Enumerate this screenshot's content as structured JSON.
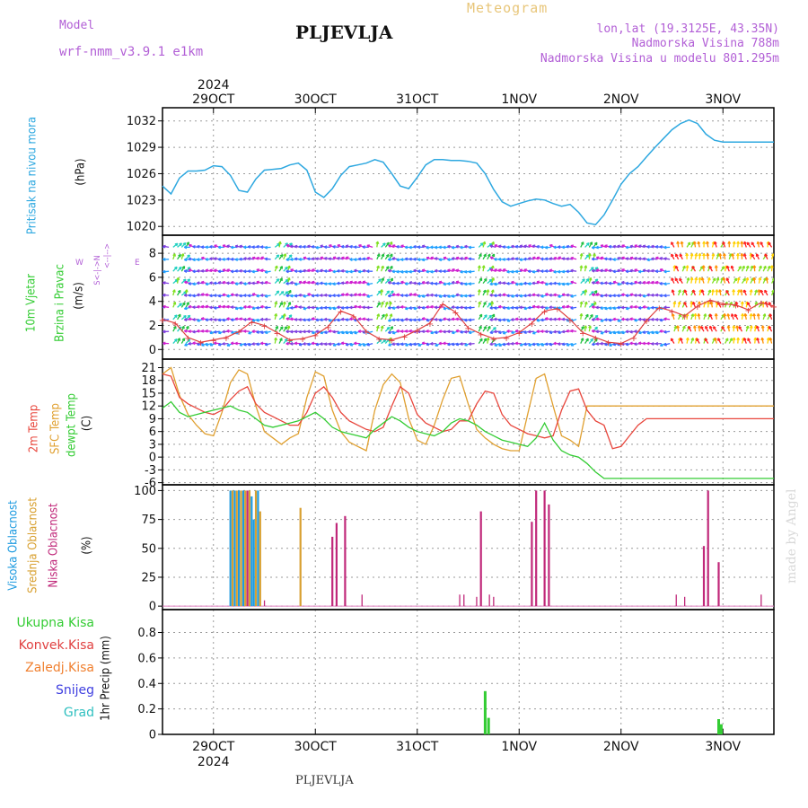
{
  "header": {
    "model_label": "Model",
    "model_name": "wrf-nmm_v3.9.1  e1km",
    "station": "PLJEVLJA",
    "product": "Meteogram",
    "coords": "lon,lat (19.3125E, 43.35N)",
    "elevation": "Nadmorska Visina 788m",
    "model_elevation": "Nadmorska Visina u modelu 801.295m",
    "credit": "made by Angel",
    "footer_station": "PLJEVLJA"
  },
  "time_axis": {
    "top_year": "2024",
    "bottom_year": "2024",
    "day_labels": [
      "29OCT",
      "30OCT",
      "31OCT",
      "1NOV",
      "2NOV",
      "3NOV"
    ]
  },
  "colors": {
    "pressure": "#2ea8e0",
    "temp2m": "#e8463c",
    "sfc_temp": "#e0a030",
    "dewpt": "#33cc33",
    "high_cloud": "#1e9be0",
    "mid_cloud": "#d8a030",
    "low_cloud": "#c0287a",
    "precip_total": "#33cc33",
    "conv_precip": "#e04040",
    "frozen_precip": "#f08030",
    "snow": "#4040e0",
    "hail": "#30c0c0",
    "wind_speed": "#e04040",
    "label_purple": "#b25fd6"
  },
  "panel_labels": {
    "pressure": {
      "title": "Pritisak na nivou mora",
      "unit": "(hPa)"
    },
    "wind": {
      "title1": "10m Vjetar",
      "title2": "Brzina i Pravac",
      "unit": "(m/s)",
      "compass_w": "W",
      "compass_e": "E",
      "compass_top": "<--|-->",
      "compass_axis": "S<-|->N"
    },
    "temp": {
      "t2m": "2m Temp",
      "sfc": "SFC Temp",
      "dew": "dewpt Temp",
      "unit": "(C)"
    },
    "cloud": {
      "high": "Visoka Oblacnost",
      "mid": "Srednja Oblacnost",
      "low": "Niska Oblacnost",
      "unit": "(%)"
    },
    "precip": {
      "axis": "1hr Precip (mm)",
      "legend": [
        "Ukupna Kisa",
        "Konvek.Kisa",
        "Zaledj.Kisa",
        "Snijeg",
        "Grad"
      ]
    }
  },
  "chart_data": [
    {
      "type": "line",
      "name": "pressure",
      "x_unit": "hours since start",
      "ylim": [
        1019,
        1033.5
      ],
      "yticks": [
        1020,
        1023,
        1026,
        1029,
        1032
      ],
      "x": [
        0,
        2,
        4,
        6,
        8,
        10,
        12,
        14,
        16,
        18,
        20,
        22,
        24,
        26,
        28,
        30,
        32,
        34,
        36,
        38,
        40,
        42,
        44,
        46,
        48,
        50,
        52,
        54,
        56,
        58,
        60,
        62,
        64,
        66,
        68,
        70,
        72,
        74,
        76,
        78,
        80,
        82,
        84,
        86,
        88,
        90,
        92,
        94,
        96,
        98,
        100,
        102,
        104,
        106,
        108,
        110,
        112,
        114,
        116,
        118,
        120,
        122,
        124,
        126,
        128,
        130,
        132,
        134,
        136,
        138,
        140,
        142,
        144
      ],
      "values": [
        1024.6,
        1023.7,
        1025.5,
        1026.3,
        1026.3,
        1026.4,
        1026.9,
        1026.8,
        1025.8,
        1024.1,
        1023.9,
        1025.4,
        1026.4,
        1026.5,
        1026.6,
        1027.0,
        1027.2,
        1026.4,
        1023.9,
        1023.3,
        1024.3,
        1025.8,
        1026.8,
        1027.0,
        1027.2,
        1027.6,
        1027.3,
        1026.0,
        1024.6,
        1024.3,
        1025.6,
        1027.0,
        1027.6,
        1027.6,
        1027.5,
        1027.5,
        1027.4,
        1027.2,
        1026.0,
        1024.2,
        1022.8,
        1022.3,
        1022.6,
        1022.9,
        1023.1,
        1023.0,
        1022.6,
        1022.3,
        1022.5,
        1021.6,
        1020.4,
        1020.2,
        1021.3,
        1023.0,
        1024.8,
        1026.0,
        1026.8,
        1027.9,
        1029.0,
        1030.0,
        1031.0,
        1031.7,
        1032.1,
        1031.7,
        1030.5,
        1029.8,
        1029.6,
        1029.6,
        1029.6,
        1029.6,
        1029.6,
        1029.6,
        1029.6
      ]
    },
    {
      "type": "line",
      "name": "wind",
      "ylim": [
        -0.8,
        9.5
      ],
      "yticks": [
        0,
        2,
        4,
        6,
        8
      ],
      "x": [
        0,
        3,
        6,
        9,
        12,
        15,
        18,
        21,
        24,
        27,
        30,
        33,
        36,
        39,
        42,
        45,
        48,
        51,
        54,
        57,
        60,
        63,
        66,
        69,
        72,
        75,
        78,
        81,
        84,
        87,
        90,
        93,
        96,
        99,
        102,
        105,
        108,
        111,
        114,
        117,
        120,
        123,
        126,
        129,
        132,
        135,
        138,
        141,
        144
      ],
      "series": [
        {
          "name": "speed",
          "values": [
            2.5,
            2.2,
            1.0,
            0.6,
            0.8,
            1.0,
            1.5,
            2.3,
            2.0,
            1.4,
            0.8,
            0.9,
            1.2,
            1.9,
            3.2,
            2.8,
            1.5,
            0.9,
            0.8,
            1.1,
            1.6,
            2.2,
            3.8,
            3.1,
            1.8,
            1.3,
            0.9,
            1.0,
            1.4,
            2.2,
            3.2,
            3.4,
            2.5,
            1.4,
            1.0,
            0.6,
            0.5,
            1.0,
            2.4,
            3.5,
            3.2,
            2.8,
            3.6,
            4.1,
            3.8,
            3.7,
            3.3,
            3.9,
            3.6
          ]
        }
      ],
      "arrow_rows": [
        0.5,
        1.5,
        2.5,
        3.5,
        4.5,
        5.5,
        6.5,
        7.5,
        8.5
      ]
    },
    {
      "type": "line",
      "name": "temperature",
      "ylim": [
        -6.5,
        23
      ],
      "yticks": [
        -6,
        -3,
        0,
        3,
        6,
        9,
        12,
        15,
        18,
        21
      ],
      "x": [
        0,
        2,
        4,
        6,
        8,
        10,
        12,
        14,
        16,
        18,
        20,
        22,
        24,
        26,
        28,
        30,
        32,
        34,
        36,
        38,
        40,
        42,
        44,
        46,
        48,
        50,
        52,
        54,
        56,
        58,
        60,
        62,
        64,
        66,
        68,
        70,
        72,
        74,
        76,
        78,
        80,
        82,
        84,
        86,
        88,
        90,
        92,
        94,
        96,
        98,
        100,
        102,
        104,
        106,
        108,
        110,
        112,
        114,
        116,
        118,
        120,
        122,
        124,
        126,
        128,
        130,
        132,
        134,
        136,
        138,
        140,
        142,
        144
      ],
      "series": [
        {
          "name": "2m Temp",
          "values": [
            19.5,
            19.0,
            14.0,
            12.5,
            11.5,
            10.5,
            10.0,
            11.0,
            13.5,
            15.5,
            16.5,
            12.5,
            10.5,
            9.5,
            8.5,
            7.5,
            7.5,
            10.5,
            15.0,
            16.5,
            14.0,
            10.5,
            8.5,
            7.5,
            6.5,
            6.0,
            7.0,
            12.0,
            16.5,
            15.0,
            10.0,
            8.0,
            7.0,
            6.0,
            6.5,
            8.5,
            8.5,
            12.5,
            15.5,
            15.0,
            10.0,
            7.5,
            6.5,
            5.5,
            5.0,
            4.5,
            5.0,
            11.0,
            15.5,
            16.0,
            11.0,
            8.5,
            7.5,
            2.0,
            2.5,
            5.0,
            7.5,
            9.0,
            9.0,
            9.0,
            9.0,
            9.0,
            9.0,
            9.0,
            9.0,
            9.0,
            9.0,
            9.0,
            9.0,
            9.0,
            9.0,
            9.0,
            9.0
          ]
        },
        {
          "name": "SFC Temp",
          "values": [
            19.5,
            21.0,
            14.5,
            10.0,
            7.5,
            5.5,
            5.0,
            10.5,
            17.5,
            20.5,
            19.5,
            12.0,
            6.0,
            4.5,
            3.0,
            4.5,
            5.5,
            14.0,
            20.0,
            19.0,
            11.0,
            6.0,
            3.5,
            2.5,
            1.5,
            11.0,
            17.0,
            19.5,
            17.5,
            9.0,
            4.0,
            3.0,
            7.5,
            13.5,
            18.5,
            19.0,
            12.5,
            6.5,
            4.5,
            3.0,
            2.0,
            1.5,
            1.5,
            10.0,
            18.5,
            19.5,
            12.0,
            5.0,
            4.0,
            2.5,
            12.0,
            12.0,
            12.0,
            12.0,
            12.0,
            12.0,
            12.0,
            12.0,
            12.0,
            12.0,
            12.0,
            12.0,
            12.0,
            12.0,
            12.0,
            12.0,
            12.0,
            12.0,
            12.0,
            12.0,
            12.0,
            12.0,
            12.0
          ]
        },
        {
          "name": "dewpt Temp",
          "values": [
            11.5,
            13.0,
            10.5,
            9.5,
            10.0,
            10.5,
            11.0,
            11.5,
            12.0,
            11.0,
            10.5,
            9.0,
            7.5,
            7.0,
            7.5,
            8.0,
            8.5,
            9.5,
            10.5,
            9.0,
            7.0,
            6.0,
            5.5,
            5.0,
            4.5,
            6.5,
            8.0,
            9.5,
            8.5,
            7.0,
            6.0,
            5.5,
            5.0,
            6.0,
            8.0,
            9.0,
            8.5,
            7.5,
            6.0,
            5.0,
            4.0,
            3.5,
            3.0,
            2.5,
            4.5,
            8.0,
            4.0,
            1.5,
            0.5,
            0.0,
            -1.5,
            -3.5,
            -5.0,
            -5.0,
            -5.0,
            -5.0,
            -5.0,
            -5.0,
            -5.0,
            -5.0,
            -5.0,
            -5.0,
            -5.0,
            -5.0,
            -5.0,
            -5.0,
            -5.0,
            -5.0,
            -5.0,
            -5.0,
            -5.0,
            -5.0,
            -5.0
          ]
        }
      ]
    },
    {
      "type": "bar",
      "name": "cloud_cover",
      "ylim": [
        -3,
        105
      ],
      "yticks": [
        0,
        25,
        50,
        75,
        100
      ],
      "series": [
        {
          "name": "Visoka Oblacnost",
          "bars": [
            [
              16.0,
              100
            ],
            [
              17.0,
              100
            ],
            [
              18.0,
              100
            ],
            [
              19.0,
              100
            ],
            [
              21.0,
              95
            ],
            [
              21.5,
              75
            ],
            [
              22.5,
              100
            ]
          ]
        },
        {
          "name": "Srednja Oblacnost",
          "bars": [
            [
              16.5,
              100
            ],
            [
              17.5,
              100
            ],
            [
              18.5,
              100
            ],
            [
              19.5,
              100
            ],
            [
              20.5,
              100
            ],
            [
              22.0,
              100
            ],
            [
              23.0,
              82
            ],
            [
              32.5,
              85
            ]
          ]
        },
        {
          "name": "Niska Oblacnost",
          "bars": [
            [
              20.0,
              100
            ],
            [
              24.0,
              5
            ],
            [
              40.0,
              60
            ],
            [
              41.0,
              72
            ],
            [
              43.0,
              78
            ],
            [
              47.0,
              10
            ],
            [
              70.0,
              10
            ],
            [
              71.0,
              10
            ],
            [
              74.0,
              8
            ],
            [
              75.0,
              82
            ],
            [
              77.0,
              10
            ],
            [
              78.0,
              8
            ],
            [
              87.0,
              73
            ],
            [
              88.0,
              100
            ],
            [
              90.0,
              100
            ],
            [
              91.0,
              88
            ],
            [
              121.0,
              10
            ],
            [
              123.0,
              8
            ],
            [
              127.5,
              52
            ],
            [
              128.5,
              100
            ],
            [
              131.0,
              38
            ],
            [
              141.0,
              10
            ]
          ]
        }
      ]
    },
    {
      "type": "bar",
      "name": "precip_1hr",
      "ylim": [
        0,
        0.98
      ],
      "yticks": [
        0,
        0.2,
        0.4,
        0.6,
        0.8
      ],
      "series": [
        {
          "name": "Ukupna Kisa",
          "bars": [
            [
              76.0,
              0.34
            ],
            [
              76.8,
              0.13
            ],
            [
              131.0,
              0.12
            ],
            [
              131.6,
              0.08
            ]
          ]
        }
      ]
    }
  ]
}
